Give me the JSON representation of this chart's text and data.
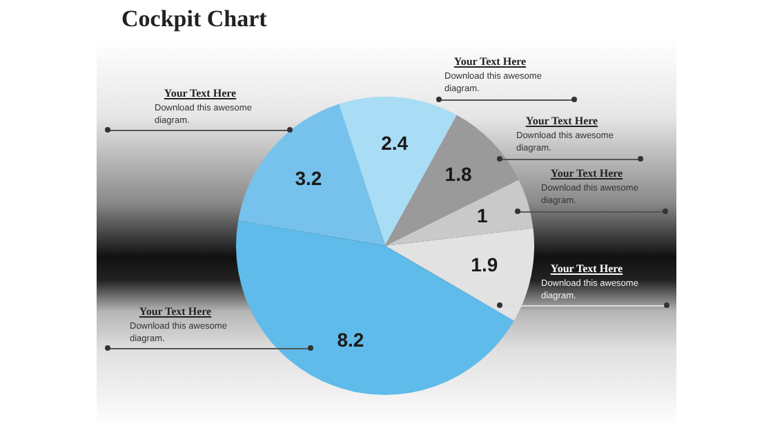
{
  "chart_data": {
    "type": "pie",
    "title": "Cockpit Chart",
    "categories": [
      null,
      null,
      null,
      null,
      null,
      null
    ],
    "values": [
      2.4,
      1.8,
      1,
      1.9,
      8.2,
      3.2
    ],
    "colors": [
      "#a9dcf5",
      "#9a9a9a",
      "#c9c9c9",
      "#e2e2e2",
      "#5fbbea",
      "#76c2ec"
    ],
    "data_labels": true,
    "legend": false,
    "annotations": [
      "Your Text Here",
      "Download this awesome diagram.",
      "Your Text Here",
      "Download this awesome diagram.",
      "Your Text Here",
      "Download this awesome diagram.",
      "Your Text Here",
      "Download this awesome diagram.",
      "Your Text Here",
      "Download this awesome diagram.",
      "Your Text Here",
      "Download this awesome diagram."
    ]
  }
}
